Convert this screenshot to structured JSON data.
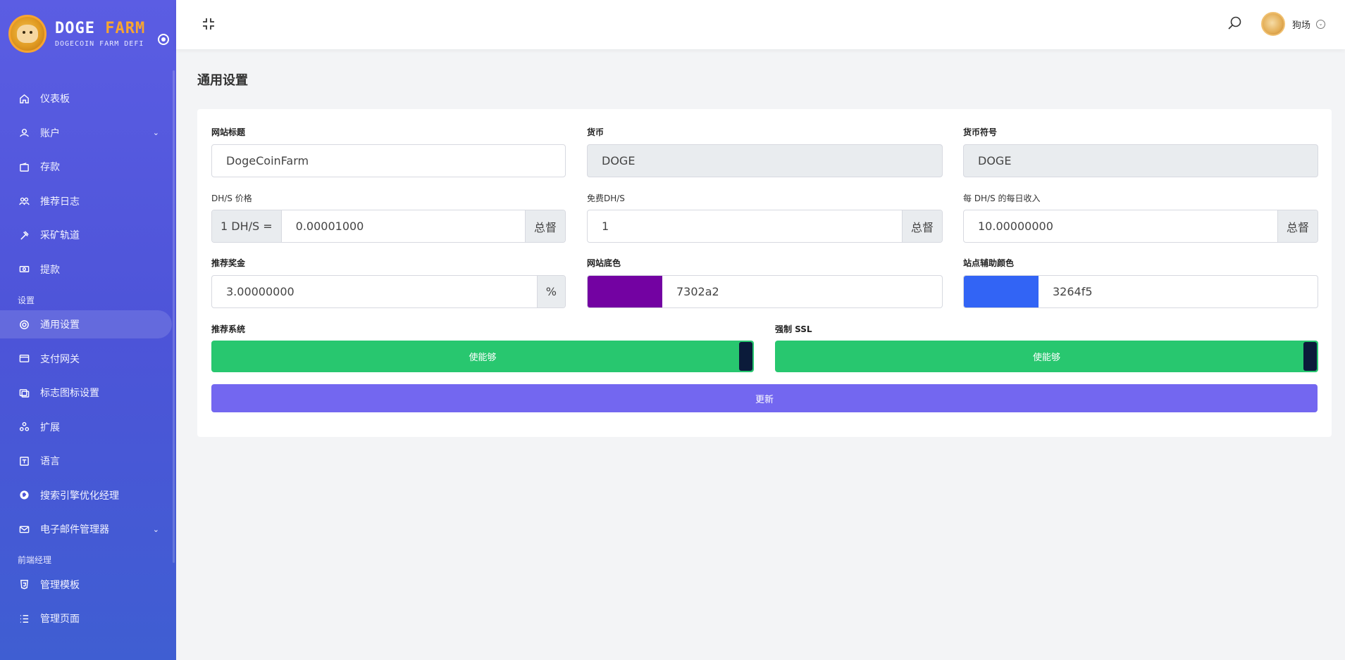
{
  "brand": {
    "name_part1": "DOGE",
    "name_part2": "FARM",
    "tagline": "DOGECOIN FARM DEFI"
  },
  "sidebar": {
    "items": [
      {
        "label": "仪表板",
        "icon": "home-icon"
      },
      {
        "label": "账户",
        "icon": "users-icon",
        "has_submenu": true
      },
      {
        "label": "存款",
        "icon": "wallet-icon"
      },
      {
        "label": "推荐日志",
        "icon": "referral-icon"
      },
      {
        "label": "采矿轨道",
        "icon": "hammer-icon"
      },
      {
        "label": "提款",
        "icon": "cash-icon"
      }
    ],
    "section_settings": "设置",
    "settings_items": [
      {
        "label": "通用设置",
        "icon": "settings-icon",
        "active": true
      },
      {
        "label": "支付网关",
        "icon": "credit-card-icon"
      },
      {
        "label": "标志图标设置",
        "icon": "image-icon"
      },
      {
        "label": "扩展",
        "icon": "puzzle-icon"
      },
      {
        "label": "语言",
        "icon": "language-icon"
      },
      {
        "label": "搜索引擎优化经理",
        "icon": "globe-icon"
      },
      {
        "label": "电子邮件管理器",
        "icon": "mail-icon",
        "has_submenu": true
      }
    ],
    "section_frontend": "前端经理",
    "frontend_items": [
      {
        "label": "管理模板",
        "icon": "html-icon"
      },
      {
        "label": "管理页面",
        "icon": "list-icon"
      }
    ]
  },
  "header": {
    "user_name": "狗场"
  },
  "page": {
    "title": "通用设置"
  },
  "form": {
    "site_title": {
      "label": "网站标题",
      "value": "DogeCoinFarm"
    },
    "currency": {
      "label": "货币",
      "value": "DOGE"
    },
    "currency_symbol": {
      "label": "货币符号",
      "value": "DOGE"
    },
    "dh_price": {
      "label": "DH/S 价格",
      "prefix": "1 DH/S =",
      "value": "0.00001000",
      "suffix": "总督"
    },
    "free_dh": {
      "label": "免费DH/S",
      "value": "1",
      "suffix": "总督"
    },
    "daily_income": {
      "label": "每 DH/S 的每日收入",
      "value": "10.00000000",
      "suffix": "总督"
    },
    "referral_bonus": {
      "label": "推荐奖金",
      "value": "3.00000000",
      "suffix": "%"
    },
    "base_color": {
      "label": "网站底色",
      "value": "7302a2",
      "swatch": "#7302a2"
    },
    "secondary_color": {
      "label": "站点辅助颜色",
      "value": "3264f5",
      "swatch": "#3264f5"
    },
    "referral_system": {
      "label": "推荐系统",
      "state": "使能够"
    },
    "force_ssl": {
      "label": "强制 SSL",
      "state": "使能够"
    },
    "update_label": "更新"
  },
  "colors": {
    "primary": "#7367f0",
    "success": "#28c76f",
    "sidebar": "#5b5de3",
    "accent": "#f7a531"
  }
}
